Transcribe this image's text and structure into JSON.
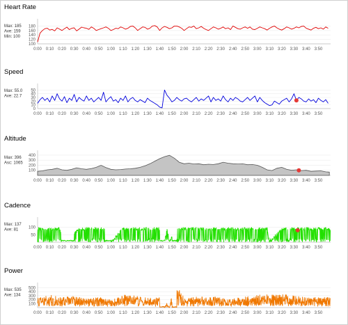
{
  "panels": [
    {
      "key": "heart_rate",
      "title": "Heart Rate",
      "stats": [
        "Max: 185",
        "Ave: 159",
        "Min: 100"
      ],
      "color": "#e00000",
      "style": "line",
      "marker": false
    },
    {
      "key": "speed",
      "title": "Speed",
      "stats": [
        "Max: 55.0",
        "Ave: 22.7"
      ],
      "color": "#0000dd",
      "style": "line",
      "marker": true
    },
    {
      "key": "altitude",
      "title": "Altitude",
      "stats": [
        "Max: 396",
        "Asc: 1065"
      ],
      "color": "#555555",
      "fill": "#c4c4c4",
      "style": "area",
      "marker": true
    },
    {
      "key": "cadence",
      "title": "Cadence",
      "stats": [
        "Max: 137",
        "Ave: 81"
      ],
      "color": "#22e000",
      "style": "line",
      "marker": true
    },
    {
      "key": "power",
      "title": "Power",
      "stats": [
        "Max: 535",
        "Ave: 134"
      ],
      "color": "#f07800",
      "style": "line",
      "marker": false
    }
  ],
  "x_tick_labels": [
    "0:00",
    "0:10",
    "0:20",
    "0:30",
    "0:40",
    "0:50",
    "1:00",
    "1:10",
    "1:20",
    "1:30",
    "1:40",
    "1:50",
    "2:00",
    "2:10",
    "2:20",
    "2:30",
    "2:40",
    "2:50",
    "3:00",
    "3:10",
    "3:20",
    "3:30",
    "3:40",
    "3:50"
  ],
  "marker_color": "#e53935",
  "chart_data": [
    {
      "type": "line",
      "title": "Heart Rate",
      "x_unit": "elapsed time h:mm",
      "ylim": [
        100,
        200
      ],
      "yticks": [
        100,
        120,
        140,
        160,
        180
      ],
      "x_minutes": [
        0,
        2,
        4,
        6,
        8,
        10,
        12,
        14,
        16,
        18,
        20,
        22,
        24,
        26,
        28,
        30,
        32,
        34,
        36,
        38,
        40,
        42,
        44,
        46,
        48,
        50,
        52,
        54,
        56,
        58,
        60,
        62,
        64,
        66,
        68,
        70,
        72,
        74,
        76,
        78,
        80,
        82,
        84,
        86,
        88,
        90,
        92,
        94,
        96,
        98,
        100,
        102,
        104,
        106,
        108,
        110,
        112,
        114,
        116,
        118,
        120,
        122,
        124,
        126,
        128,
        130,
        132,
        134,
        136,
        138,
        140,
        142,
        144,
        146,
        148,
        150,
        152,
        154,
        156,
        158,
        160,
        162,
        164,
        166,
        168,
        170,
        172,
        174,
        176,
        178,
        180,
        182,
        184,
        186,
        188,
        190,
        192,
        194,
        196,
        198,
        200,
        202,
        204,
        206,
        208,
        210,
        212,
        214,
        216,
        218,
        220,
        222,
        224,
        226,
        228,
        230,
        232,
        234,
        236,
        238
      ],
      "values": [
        108,
        148,
        160,
        168,
        170,
        162,
        165,
        158,
        172,
        166,
        160,
        168,
        175,
        164,
        170,
        172,
        158,
        166,
        175,
        172,
        170,
        165,
        176,
        170,
        160,
        164,
        168,
        172,
        176,
        170,
        160,
        164,
        170,
        168,
        176,
        172,
        166,
        170,
        178,
        180,
        172,
        160,
        168,
        176,
        174,
        166,
        170,
        180,
        182,
        176,
        160,
        172,
        178,
        174,
        168,
        172,
        180,
        180,
        176,
        170,
        160,
        168,
        176,
        174,
        180,
        168,
        172,
        178,
        170,
        164,
        160,
        168,
        176,
        172,
        166,
        170,
        176,
        168,
        172,
        164,
        180,
        174,
        168,
        166,
        172,
        176,
        170,
        176,
        166,
        164,
        170,
        176,
        172,
        168,
        162,
        170,
        176,
        180,
        172,
        166,
        162,
        168,
        176,
        172,
        166,
        170,
        176,
        172,
        178,
        180,
        170,
        166,
        162,
        170,
        174,
        168,
        172,
        166,
        176,
        170
      ]
    },
    {
      "type": "line",
      "title": "Speed",
      "x_unit": "elapsed time h:mm",
      "ylim": [
        0,
        60
      ],
      "yticks": [
        0,
        10,
        20,
        30,
        40,
        50
      ],
      "marker_at": {
        "x_minutes": 212,
        "y": 22
      },
      "x_minutes": [
        0,
        2,
        4,
        6,
        8,
        10,
        12,
        14,
        16,
        18,
        20,
        22,
        24,
        26,
        28,
        30,
        32,
        34,
        36,
        38,
        40,
        42,
        44,
        46,
        48,
        50,
        52,
        54,
        56,
        58,
        60,
        62,
        64,
        66,
        68,
        70,
        72,
        74,
        76,
        78,
        80,
        82,
        84,
        86,
        88,
        90,
        92,
        94,
        96,
        98,
        100,
        102,
        104,
        106,
        108,
        110,
        112,
        114,
        116,
        118,
        120,
        122,
        124,
        126,
        128,
        130,
        132,
        134,
        136,
        138,
        140,
        142,
        144,
        146,
        148,
        150,
        152,
        154,
        156,
        158,
        160,
        162,
        164,
        166,
        168,
        170,
        172,
        174,
        176,
        178,
        180,
        182,
        184,
        186,
        188,
        190,
        192,
        194,
        196,
        198,
        200,
        202,
        204,
        206,
        208,
        210,
        212,
        214,
        216,
        218,
        220,
        222,
        224,
        226,
        228,
        230,
        232,
        234,
        236,
        238
      ],
      "values": [
        14,
        24,
        30,
        22,
        28,
        18,
        34,
        22,
        40,
        26,
        20,
        32,
        16,
        28,
        22,
        38,
        18,
        30,
        24,
        20,
        34,
        22,
        28,
        18,
        24,
        30,
        22,
        44,
        18,
        26,
        32,
        20,
        24,
        16,
        28,
        22,
        34,
        18,
        26,
        30,
        22,
        18,
        24,
        20,
        16,
        28,
        22,
        18,
        14,
        10,
        4,
        2,
        50,
        36,
        28,
        18,
        22,
        30,
        24,
        20,
        26,
        28,
        22,
        18,
        24,
        30,
        20,
        26,
        22,
        28,
        34,
        18,
        30,
        22,
        26,
        20,
        34,
        24,
        18,
        28,
        22,
        30,
        26,
        20,
        18,
        24,
        30,
        22,
        28,
        34,
        18,
        30,
        22,
        16,
        12,
        8,
        10,
        20,
        16,
        12,
        20,
        24,
        28,
        18,
        26,
        40,
        22,
        30,
        26,
        20,
        18,
        26,
        20,
        24,
        16,
        28,
        22,
        18,
        24,
        14
      ]
    },
    {
      "type": "area",
      "title": "Altitude",
      "x_unit": "elapsed time h:mm",
      "ylim": [
        0,
        440
      ],
      "yticks": [
        100,
        200,
        300,
        400
      ],
      "marker_at": {
        "x_minutes": 214,
        "y": 100
      },
      "x_minutes": [
        0,
        4,
        8,
        12,
        16,
        20,
        24,
        28,
        32,
        36,
        40,
        44,
        48,
        52,
        56,
        60,
        64,
        68,
        72,
        76,
        80,
        84,
        88,
        92,
        96,
        100,
        104,
        108,
        112,
        116,
        120,
        124,
        128,
        132,
        136,
        140,
        144,
        148,
        152,
        156,
        160,
        164,
        168,
        172,
        176,
        180,
        184,
        188,
        192,
        196,
        200,
        204,
        208,
        212,
        216,
        220,
        224,
        228,
        232,
        236,
        239
      ],
      "values": [
        80,
        90,
        110,
        120,
        140,
        110,
        100,
        120,
        150,
        130,
        120,
        135,
        160,
        200,
        155,
        120,
        110,
        115,
        125,
        130,
        140,
        160,
        190,
        230,
        280,
        330,
        370,
        396,
        340,
        260,
        230,
        240,
        225,
        230,
        210,
        220,
        215,
        230,
        260,
        240,
        230,
        225,
        228,
        210,
        215,
        200,
        160,
        110,
        95,
        140,
        160,
        120,
        100,
        110,
        95,
        100,
        80,
        85,
        90,
        70,
        65
      ]
    },
    {
      "type": "line",
      "title": "Cadence",
      "x_unit": "elapsed time h:mm",
      "ylim": [
        0,
        150
      ],
      "yticks": [
        50,
        100
      ],
      "marker_at": {
        "x_minutes": 213,
        "y": 80
      },
      "note": "dense oscillation between ~0 and ~100 rpm; near-zero segments at 0:20–0:30, 0:55–1:00, 1:40–1:45 and 1:50–1:55",
      "x_minutes": [
        0,
        8,
        18,
        24,
        34,
        55,
        60,
        70,
        92,
        100,
        104,
        106,
        108,
        112,
        116,
        188,
        190,
        200,
        216,
        236,
        239
      ],
      "values": [
        90,
        85,
        90,
        0,
        90,
        90,
        0,
        90,
        90,
        90,
        0,
        90,
        0,
        90,
        90,
        90,
        0,
        90,
        90,
        90,
        90
      ]
    },
    {
      "type": "line",
      "title": "Power",
      "x_unit": "elapsed time h:mm",
      "ylim": [
        0,
        560
      ],
      "yticks": [
        100,
        200,
        300,
        400,
        500
      ],
      "note": "dense oscillation mostly 0–300 W with spikes to ~535 W; gaps near 1:40–1:45 and 1:50–1:55",
      "x_minutes": [
        0,
        10,
        20,
        30,
        40,
        50,
        60,
        70,
        80,
        90,
        100,
        104,
        106,
        108,
        112,
        120,
        140,
        160,
        180,
        200,
        220,
        239
      ],
      "values": [
        150,
        200,
        160,
        180,
        140,
        170,
        120,
        200,
        190,
        150,
        160,
        0,
        80,
        0,
        400,
        160,
        180,
        140,
        200,
        220,
        170,
        160
      ]
    }
  ]
}
